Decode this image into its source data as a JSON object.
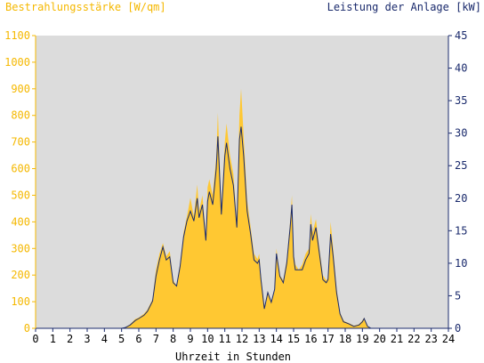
{
  "chart_data": {
    "type": "area",
    "title": "",
    "ylabel_left": "Bestrahlungsstärke [W/qm]",
    "ylabel_right": "Leistung der Anlage [kW]",
    "xlabel": "Uhrzeit in Stunden",
    "xlim": [
      0,
      24
    ],
    "ylim_left": [
      0,
      1100
    ],
    "ylim_right": [
      0,
      45
    ],
    "x_ticks": [
      "0",
      "1",
      "2",
      "3",
      "4",
      "5",
      "6",
      "7",
      "8",
      "9",
      "10",
      "11",
      "12",
      "13",
      "14",
      "15",
      "16",
      "17",
      "18",
      "19",
      "20",
      "21",
      "22",
      "23",
      "24"
    ],
    "y_left_ticks": [
      "0",
      "100",
      "200",
      "300",
      "400",
      "500",
      "600",
      "700",
      "800",
      "900",
      "1000",
      "1100"
    ],
    "y_right_ticks": [
      "0",
      "5",
      "10",
      "15",
      "20",
      "25",
      "30",
      "35",
      "40",
      "45"
    ],
    "colors": {
      "irradiance_fill": "#ffc832",
      "power_line": "#1a2a6c",
      "plot_bg": "#dcdcdc"
    },
    "series": [
      {
        "axis": "left",
        "x": [
          0,
          5,
          5.2,
          5.5,
          5.8,
          6,
          6.3,
          6.5,
          6.8,
          7,
          7.2,
          7.4,
          7.6,
          7.8,
          8,
          8.2,
          8.4,
          8.6,
          8.8,
          9,
          9.2,
          9.4,
          9.5,
          9.7,
          9.9,
          10,
          10.1,
          10.3,
          10.5,
          10.6,
          10.8,
          11,
          11.1,
          11.3,
          11.5,
          11.7,
          11.85,
          11.95,
          12.1,
          12.3,
          12.5,
          12.7,
          12.9,
          13,
          13.1,
          13.3,
          13.5,
          13.7,
          13.9,
          14,
          14.2,
          14.4,
          14.6,
          14.8,
          14.9,
          15,
          15.1,
          15.3,
          15.5,
          15.7,
          15.9,
          16,
          16.1,
          16.3,
          16.5,
          16.7,
          16.9,
          17,
          17.15,
          17.3,
          17.5,
          17.7,
          17.9,
          18,
          18.2,
          18.5,
          18.8,
          19,
          19.1,
          19.3,
          19.5,
          20,
          24
        ],
        "values": [
          0,
          0,
          3,
          15,
          35,
          40,
          55,
          70,
          110,
          220,
          280,
          320,
          270,
          290,
          180,
          160,
          240,
          360,
          420,
          490,
          420,
          540,
          440,
          500,
          350,
          530,
          560,
          500,
          640,
          810,
          450,
          700,
          770,
          650,
          580,
          400,
          800,
          900,
          720,
          480,
          380,
          280,
          260,
          280,
          200,
          80,
          140,
          100,
          150,
          300,
          200,
          180,
          260,
          400,
          500,
          280,
          240,
          220,
          240,
          280,
          300,
          430,
          360,
          410,
          300,
          200,
          180,
          190,
          400,
          300,
          150,
          60,
          30,
          25,
          20,
          10,
          15,
          30,
          40,
          10,
          0,
          0,
          0
        ]
      },
      {
        "axis": "right",
        "x": [
          0,
          5,
          5.2,
          5.5,
          5.8,
          6,
          6.3,
          6.5,
          6.8,
          7,
          7.2,
          7.4,
          7.6,
          7.8,
          8,
          8.2,
          8.4,
          8.6,
          8.8,
          9,
          9.2,
          9.4,
          9.5,
          9.7,
          9.9,
          10,
          10.1,
          10.3,
          10.5,
          10.6,
          10.8,
          11,
          11.1,
          11.3,
          11.5,
          11.7,
          11.85,
          11.95,
          12.1,
          12.3,
          12.5,
          12.7,
          12.9,
          13,
          13.1,
          13.3,
          13.5,
          13.7,
          13.9,
          14,
          14.2,
          14.4,
          14.6,
          14.8,
          14.9,
          15,
          15.1,
          15.3,
          15.5,
          15.7,
          15.9,
          16,
          16.1,
          16.3,
          16.5,
          16.7,
          16.9,
          17,
          17.15,
          17.3,
          17.5,
          17.7,
          17.9,
          18,
          18.2,
          18.5,
          18.8,
          19,
          19.1,
          19.3,
          19.5,
          20,
          24
        ],
        "values": [
          0,
          0,
          0.1,
          0.5,
          1.2,
          1.5,
          2,
          2.6,
          4.2,
          8,
          10.5,
          12.5,
          10.5,
          11,
          7,
          6.5,
          9.5,
          14,
          16.5,
          18,
          16.5,
          20,
          17,
          19,
          13.5,
          19.5,
          21,
          19,
          24.5,
          29.5,
          17.5,
          26.5,
          28.5,
          24.5,
          22,
          15.5,
          29,
          31,
          26.5,
          18,
          14.5,
          10.5,
          10,
          10.5,
          7.5,
          3,
          5.5,
          4,
          6,
          11.5,
          8,
          7,
          10,
          15.5,
          19,
          11,
          9,
          9,
          9,
          10.5,
          11.5,
          16,
          13.5,
          15.5,
          11.5,
          7.5,
          7,
          7.5,
          14.5,
          11,
          5.5,
          2.2,
          1,
          0.9,
          0.7,
          0.3,
          0.5,
          1,
          1.5,
          0.3,
          0,
          0,
          0
        ]
      }
    ]
  }
}
